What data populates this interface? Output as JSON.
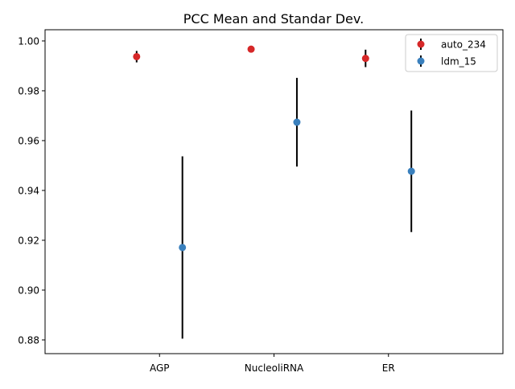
{
  "chart_data": {
    "type": "scatter",
    "title": "PCC Mean and Standar Dev.",
    "xlabel": "",
    "ylabel": "",
    "categories": [
      "AGP",
      "NucleoliRNA",
      "ER"
    ],
    "ylim": [
      0.8745,
      1.0045
    ],
    "yticks": [
      0.88,
      0.9,
      0.92,
      0.94,
      0.96,
      0.98,
      1.0
    ],
    "ytick_labels": [
      "0.88",
      "0.90",
      "0.92",
      "0.94",
      "0.96",
      "0.98",
      "1.00"
    ],
    "grid": false,
    "legend_position": "top-right",
    "series": [
      {
        "name": "auto_234",
        "color": "#d62728",
        "offset": -0.2,
        "means": [
          0.9937,
          0.9967,
          0.993
        ],
        "stds": [
          0.0023,
          0.0004,
          0.0035
        ]
      },
      {
        "name": "ldm_15",
        "color": "#3a80bd",
        "offset": 0.2,
        "means": [
          0.9171,
          0.9674,
          0.9477
        ],
        "stds": [
          0.0366,
          0.0178,
          0.0244
        ]
      }
    ]
  }
}
